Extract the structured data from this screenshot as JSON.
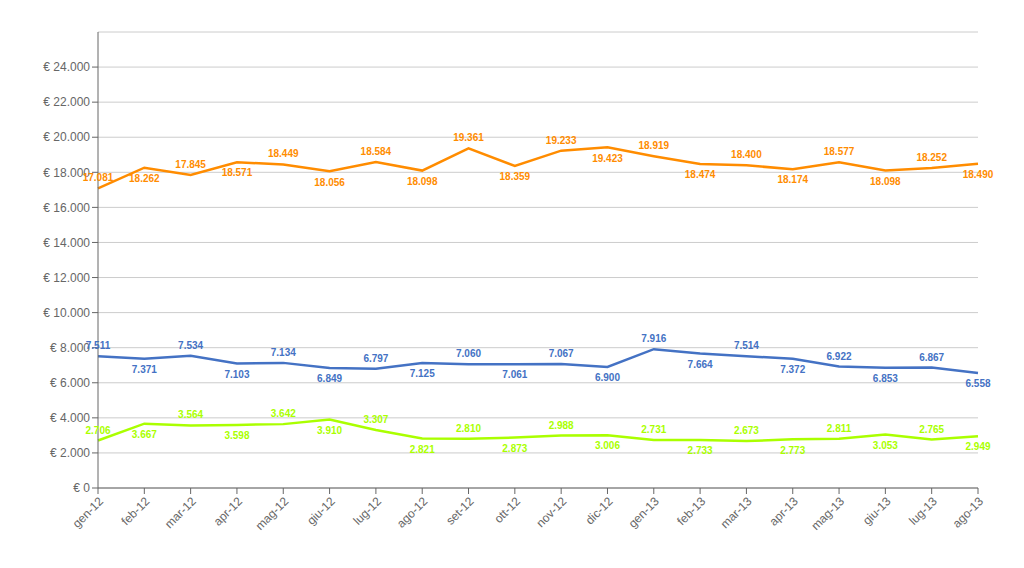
{
  "chart_data": {
    "type": "line",
    "categories": [
      "gen-12",
      "feb-12",
      "mar-12",
      "apr-12",
      "mag-12",
      "giu-12",
      "lug-12",
      "ago-12",
      "set-12",
      "ott-12",
      "nov-12",
      "dic-12",
      "gen-13",
      "feb-13",
      "mar-13",
      "apr-13",
      "mag-13",
      "giu-13",
      "lug-13",
      "ago-13"
    ],
    "series": [
      {
        "color": "#FF8C00",
        "values": [
          17081,
          18262,
          17845,
          18571,
          18449,
          18056,
          18584,
          18098,
          19361,
          18359,
          19233,
          19423,
          18919,
          18474,
          18400,
          18174,
          18577,
          18098,
          18252,
          18490
        ],
        "value_labels": [
          "17.081",
          "18.262",
          "17.845",
          "18.571",
          "18.449",
          "18.056",
          "18.584",
          "18.098",
          "19.361",
          "18.359",
          "19.233",
          "19.423",
          "18.919",
          "18.474",
          "18.400",
          "18.174",
          "18.577",
          "18.098",
          "18.252",
          "18.490"
        ]
      },
      {
        "color": "#4472C4",
        "values": [
          7511,
          7371,
          7534,
          7103,
          7134,
          6849,
          6797,
          7125,
          7060,
          7061,
          7067,
          6900,
          7916,
          7664,
          7514,
          7372,
          6922,
          6853,
          6867,
          6558
        ],
        "value_labels": [
          "7.511",
          "7.371",
          "7.534",
          "7.103",
          "7.134",
          "6.849",
          "6.797",
          "7.125",
          "7.060",
          "7.061",
          "7.067",
          "6.900",
          "7.916",
          "7.664",
          "7.514",
          "7.372",
          "6.922",
          "6.853",
          "6.867",
          "6.558"
        ]
      },
      {
        "color": "#AAFF00",
        "values": [
          2706,
          3667,
          3564,
          3598,
          3642,
          3910,
          3307,
          2821,
          2810,
          2873,
          2988,
          3006,
          2731,
          2733,
          2673,
          2773,
          2811,
          3053,
          2765,
          2949
        ],
        "value_labels": [
          "2.706",
          "3.667",
          "3.564",
          "3.598",
          "3.642",
          "3.910",
          "3.307",
          "2.821",
          "2.810",
          "2.873",
          "2.988",
          "3.006",
          "2.731",
          "2.733",
          "2.673",
          "2.773",
          "2.811",
          "3.053",
          "2.765",
          "2.949"
        ]
      }
    ],
    "ylim": [
      0,
      26000
    ],
    "yticks": [
      {
        "value": 0,
        "label": "€ 0"
      },
      {
        "value": 2000,
        "label": "€ 2.000"
      },
      {
        "value": 4000,
        "label": "€ 4.000"
      },
      {
        "value": 6000,
        "label": "€ 6.000"
      },
      {
        "value": 8000,
        "label": "€ 8.000"
      },
      {
        "value": 10000,
        "label": "€ 10.000"
      },
      {
        "value": 12000,
        "label": "€ 12.000"
      },
      {
        "value": 14000,
        "label": "€ 14.000"
      },
      {
        "value": 16000,
        "label": "€ 16.000"
      },
      {
        "value": 18000,
        "label": "€ 18.000"
      },
      {
        "value": 20000,
        "label": "€ 20.000"
      },
      {
        "value": 22000,
        "label": "€ 22.000"
      },
      {
        "value": 24000,
        "label": "€ 24.000"
      }
    ],
    "grid": true,
    "data_labels": true
  }
}
